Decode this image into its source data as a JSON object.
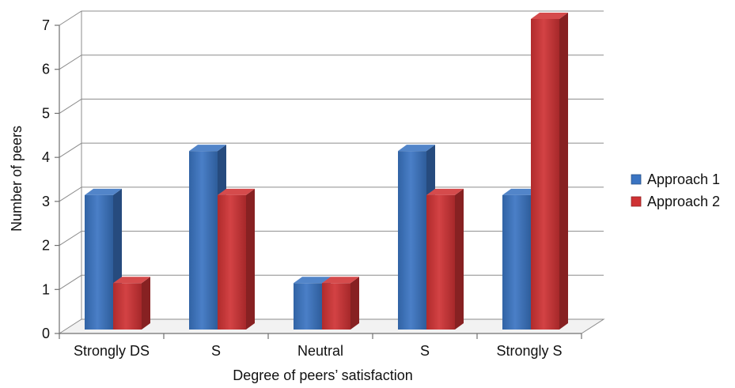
{
  "chart_data": {
    "type": "bar",
    "title": "",
    "xlabel": "Degree of peers’ satisfaction",
    "ylabel": "Number of peers",
    "categories": [
      "Strongly DS",
      "S",
      "Neutral",
      "S",
      "Strongly S"
    ],
    "series": [
      {
        "name": "Approach 1",
        "values": [
          3,
          4,
          1,
          4,
          3
        ],
        "color": "#3a74c2"
      },
      {
        "name": "Approach 2",
        "values": [
          1,
          3,
          1,
          3,
          7
        ],
        "color": "#cf3234"
      }
    ],
    "ylim": [
      0,
      7
    ],
    "yticks": [
      0,
      1,
      2,
      3,
      4,
      5,
      6,
      7
    ],
    "grid": true,
    "legend_position": "right",
    "style": "3d-clustered-column"
  }
}
